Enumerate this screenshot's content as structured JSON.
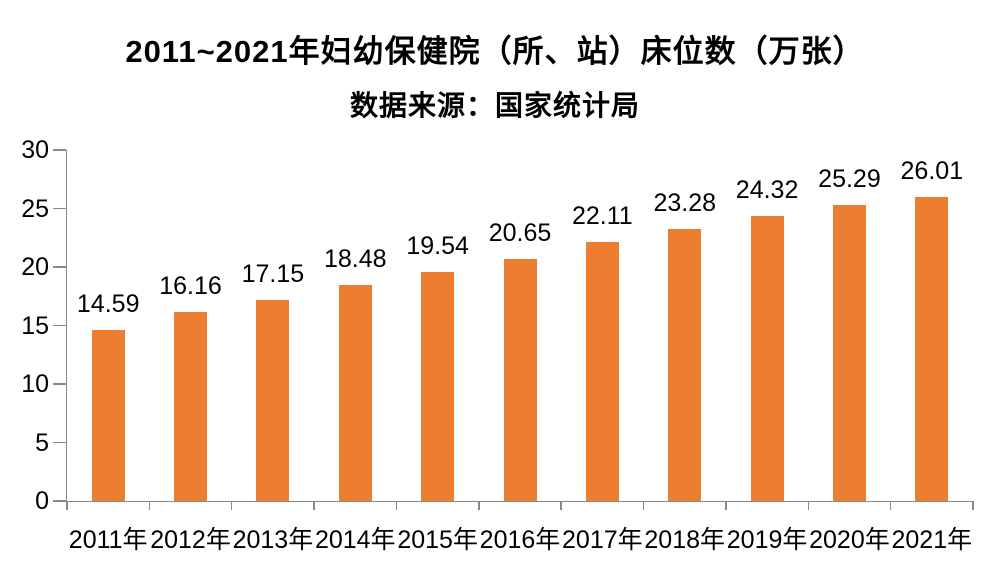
{
  "chart_data": {
    "type": "bar",
    "title": "2011~2021年妇幼保健院（所、站）床位数（万张）",
    "subtitle": "数据来源：国家统计局",
    "categories": [
      "2011年",
      "2012年",
      "2013年",
      "2014年",
      "2015年",
      "2016年",
      "2017年",
      "2018年",
      "2019年",
      "2020年",
      "2021年"
    ],
    "values": [
      14.59,
      16.16,
      17.15,
      18.48,
      19.54,
      20.65,
      22.11,
      23.28,
      24.32,
      25.29,
      26.01
    ],
    "value_labels": [
      "14.59",
      "16.16",
      "17.15",
      "18.48",
      "19.54",
      "20.65",
      "22.11",
      "23.28",
      "24.32",
      "25.29",
      "26.01"
    ],
    "xlabel": "",
    "ylabel": "",
    "ylim": [
      0,
      30
    ],
    "yticks": [
      0,
      5,
      10,
      15,
      20,
      25,
      30
    ],
    "grid": false,
    "legend": null,
    "data_labels": true,
    "colors": {
      "bar": "#ED7D31",
      "axis": "#898989",
      "text": "#000000",
      "background": "#FFFFFF"
    }
  }
}
